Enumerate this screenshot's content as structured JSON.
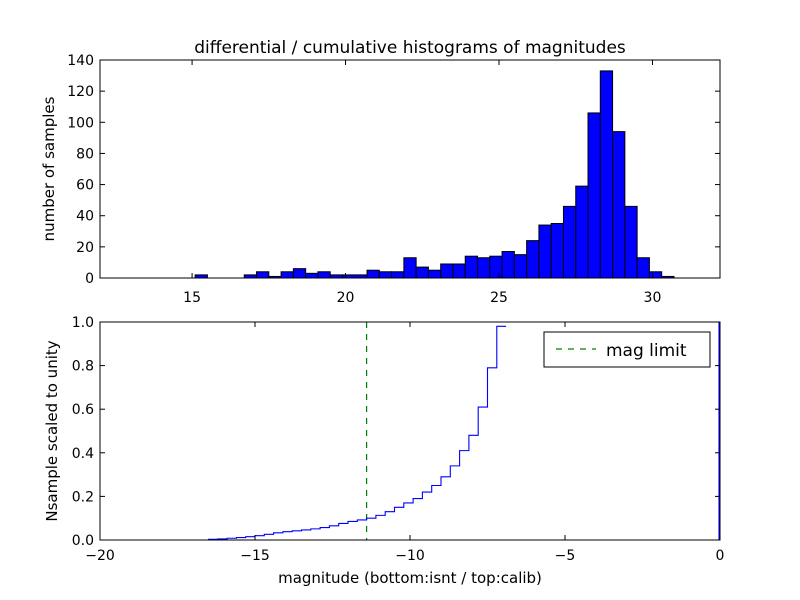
{
  "chart_data": [
    {
      "type": "bar",
      "title": "differential / cumulative histograms of magnitudes",
      "xlabel": "",
      "ylabel": "number of samples",
      "xlim": [
        12.0,
        32.2
      ],
      "ylim": [
        0,
        140
      ],
      "xticks": [
        15,
        20,
        25,
        30
      ],
      "yticks": [
        0,
        20,
        40,
        60,
        80,
        100,
        120,
        140
      ],
      "bar_color": "#0000ff",
      "edge_color": "#000000",
      "bins": [
        [
          15.1,
          15.5,
          2
        ],
        [
          16.7,
          17.1,
          2
        ],
        [
          17.1,
          17.5,
          4
        ],
        [
          17.5,
          17.9,
          1
        ],
        [
          17.9,
          18.3,
          4
        ],
        [
          18.3,
          18.7,
          6
        ],
        [
          18.7,
          19.1,
          3
        ],
        [
          19.1,
          19.5,
          4
        ],
        [
          19.5,
          19.9,
          2
        ],
        [
          19.9,
          20.7,
          2
        ],
        [
          20.7,
          21.1,
          5
        ],
        [
          21.1,
          21.5,
          4
        ],
        [
          21.5,
          21.9,
          4
        ],
        [
          21.9,
          22.3,
          13
        ],
        [
          22.3,
          22.7,
          7
        ],
        [
          22.7,
          23.1,
          5
        ],
        [
          23.1,
          23.5,
          9
        ],
        [
          23.5,
          23.9,
          9
        ],
        [
          23.9,
          24.3,
          14
        ],
        [
          24.3,
          24.7,
          13
        ],
        [
          24.7,
          25.1,
          14
        ],
        [
          25.1,
          25.5,
          17
        ],
        [
          25.5,
          25.9,
          15
        ],
        [
          25.9,
          26.3,
          24
        ],
        [
          26.3,
          26.7,
          34
        ],
        [
          26.7,
          27.1,
          35
        ],
        [
          27.1,
          27.5,
          46
        ],
        [
          27.5,
          27.9,
          59
        ],
        [
          27.9,
          28.3,
          106
        ],
        [
          28.3,
          28.7,
          133
        ],
        [
          28.7,
          29.1,
          94
        ],
        [
          29.1,
          29.5,
          46
        ],
        [
          29.5,
          29.9,
          13
        ],
        [
          29.9,
          30.3,
          4
        ],
        [
          30.3,
          30.7,
          1
        ]
      ]
    },
    {
      "type": "line",
      "title": "",
      "xlabel": "magnitude (bottom:isnt / top:calib)",
      "ylabel": "Nsample scaled to unity",
      "xlim": [
        -20,
        0
      ],
      "ylim": [
        0.0,
        1.0
      ],
      "xticks": [
        -20,
        -15,
        -10,
        -5,
        0
      ],
      "xtick_labels": [
        "−20",
        "−15",
        "−10",
        "−5",
        "0"
      ],
      "yticks": [
        0.0,
        0.2,
        0.4,
        0.6,
        0.8,
        1.0
      ],
      "ytick_labels": [
        "0.0",
        "0.2",
        "0.4",
        "0.6",
        "0.8",
        "1.0"
      ],
      "series": [
        {
          "style": "step",
          "color": "#0000ff",
          "x": [
            -20.0,
            -16.5,
            -16.2,
            -15.9,
            -15.6,
            -15.3,
            -15.0,
            -14.7,
            -14.4,
            -14.1,
            -13.8,
            -13.5,
            -13.2,
            -12.9,
            -12.6,
            -12.3,
            -12.0,
            -11.7,
            -11.4,
            -11.1,
            -10.8,
            -10.5,
            -10.2,
            -9.9,
            -9.6,
            -9.3,
            -9.0,
            -8.7,
            -8.4,
            -8.1,
            -7.8,
            -7.5,
            -7.2
          ],
          "y": [
            0.0,
            0.003,
            0.005,
            0.008,
            0.011,
            0.015,
            0.02,
            0.026,
            0.033,
            0.038,
            0.042,
            0.046,
            0.051,
            0.057,
            0.065,
            0.076,
            0.085,
            0.092,
            0.1,
            0.113,
            0.13,
            0.15,
            0.17,
            0.19,
            0.22,
            0.25,
            0.29,
            0.34,
            0.41,
            0.48,
            0.61,
            0.79,
            0.98
          ]
        }
      ],
      "vline": {
        "x": -11.4,
        "color": "#008000",
        "label": "mag limit"
      },
      "legend_loc": "top-right"
    }
  ]
}
